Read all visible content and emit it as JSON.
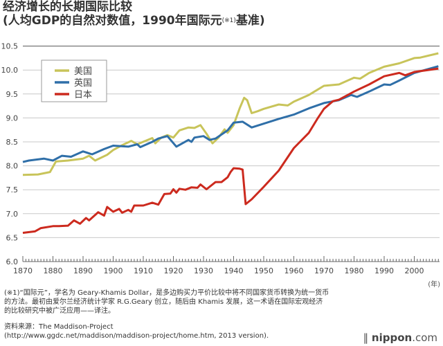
{
  "title": {
    "line1": "经济增长的长期国际比较",
    "line2_pre": "(人均GDP的自然对数值，1990年国际元",
    "line2_sup": "(※1)",
    "line2_post": "基准)"
  },
  "chart_data": {
    "type": "line",
    "title": "经济增长的长期国际比较",
    "xlabel": "(年)",
    "ylabel": "",
    "xlim": [
      1870,
      2008
    ],
    "ylim": [
      6.0,
      10.5
    ],
    "yticks": [
      "6.0",
      "6.5",
      "7.0",
      "7.5",
      "8.0",
      "8.5",
      "9.0",
      "9.5",
      "10.0",
      "10.5"
    ],
    "xticks": [
      "1870",
      "1880",
      "1890",
      "1900",
      "1910",
      "1920",
      "1930",
      "1940",
      "1950",
      "1960",
      "1970",
      "1980",
      "1990",
      "2000"
    ],
    "grid": true,
    "legend": "top-left",
    "series": [
      {
        "name": "美国",
        "color": "#c8c45a",
        "points": [
          [
            1870,
            7.81
          ],
          [
            1875,
            7.82
          ],
          [
            1879,
            7.87
          ],
          [
            1881,
            8.09
          ],
          [
            1885,
            8.11
          ],
          [
            1890,
            8.15
          ],
          [
            1892,
            8.21
          ],
          [
            1894,
            8.11
          ],
          [
            1898,
            8.23
          ],
          [
            1900,
            8.33
          ],
          [
            1903,
            8.43
          ],
          [
            1906,
            8.52
          ],
          [
            1908,
            8.45
          ],
          [
            1913,
            8.58
          ],
          [
            1914,
            8.47
          ],
          [
            1916,
            8.59
          ],
          [
            1918,
            8.64
          ],
          [
            1920,
            8.59
          ],
          [
            1922,
            8.74
          ],
          [
            1925,
            8.8
          ],
          [
            1927,
            8.79
          ],
          [
            1929,
            8.85
          ],
          [
            1931,
            8.67
          ],
          [
            1933,
            8.47
          ],
          [
            1935,
            8.59
          ],
          [
            1937,
            8.76
          ],
          [
            1938,
            8.69
          ],
          [
            1940,
            8.85
          ],
          [
            1942,
            9.2
          ],
          [
            1943.5,
            9.42
          ],
          [
            1944.5,
            9.37
          ],
          [
            1946,
            9.1
          ],
          [
            1948,
            9.14
          ],
          [
            1950,
            9.19
          ],
          [
            1955,
            9.28
          ],
          [
            1958,
            9.26
          ],
          [
            1960,
            9.34
          ],
          [
            1965,
            9.48
          ],
          [
            1970,
            9.67
          ],
          [
            1975,
            9.7
          ],
          [
            1980,
            9.84
          ],
          [
            1982,
            9.82
          ],
          [
            1985,
            9.94
          ],
          [
            1990,
            10.07
          ],
          [
            1995,
            10.14
          ],
          [
            2000,
            10.25
          ],
          [
            2002,
            10.26
          ],
          [
            2008,
            10.35
          ]
        ]
      },
      {
        "name": "英国",
        "color": "#2f6fa8",
        "points": [
          [
            1870,
            8.08
          ],
          [
            1872,
            8.11
          ],
          [
            1877,
            8.15
          ],
          [
            1880,
            8.11
          ],
          [
            1883,
            8.21
          ],
          [
            1886,
            8.19
          ],
          [
            1890,
            8.3
          ],
          [
            1893,
            8.24
          ],
          [
            1897,
            8.35
          ],
          [
            1900,
            8.42
          ],
          [
            1905,
            8.4
          ],
          [
            1908,
            8.45
          ],
          [
            1909,
            8.39
          ],
          [
            1913,
            8.5
          ],
          [
            1915,
            8.57
          ],
          [
            1918,
            8.62
          ],
          [
            1921,
            8.4
          ],
          [
            1925,
            8.54
          ],
          [
            1926,
            8.5
          ],
          [
            1927,
            8.59
          ],
          [
            1930,
            8.62
          ],
          [
            1932,
            8.54
          ],
          [
            1934,
            8.57
          ],
          [
            1938,
            8.74
          ],
          [
            1940,
            8.9
          ],
          [
            1943,
            8.92
          ],
          [
            1946,
            8.8
          ],
          [
            1950,
            8.88
          ],
          [
            1955,
            8.98
          ],
          [
            1960,
            9.07
          ],
          [
            1965,
            9.2
          ],
          [
            1970,
            9.31
          ],
          [
            1975,
            9.37
          ],
          [
            1979,
            9.48
          ],
          [
            1981,
            9.44
          ],
          [
            1985,
            9.55
          ],
          [
            1990,
            9.7
          ],
          [
            1992,
            9.69
          ],
          [
            1995,
            9.78
          ],
          [
            2000,
            9.94
          ],
          [
            2008,
            10.08
          ]
        ]
      },
      {
        "name": "日本",
        "color": "#cc2a1e",
        "points": [
          [
            1870,
            6.6
          ],
          [
            1874,
            6.63
          ],
          [
            1876,
            6.7
          ],
          [
            1880,
            6.74
          ],
          [
            1882,
            6.74
          ],
          [
            1885,
            6.75
          ],
          [
            1887,
            6.86
          ],
          [
            1889,
            6.79
          ],
          [
            1891,
            6.91
          ],
          [
            1892,
            6.86
          ],
          [
            1895,
            7.03
          ],
          [
            1897,
            6.96
          ],
          [
            1898,
            7.14
          ],
          [
            1900,
            7.04
          ],
          [
            1902,
            7.1
          ],
          [
            1903,
            7.02
          ],
          [
            1905,
            7.08
          ],
          [
            1906,
            7.04
          ],
          [
            1907,
            7.17
          ],
          [
            1910,
            7.17
          ],
          [
            1913,
            7.23
          ],
          [
            1915,
            7.19
          ],
          [
            1917,
            7.41
          ],
          [
            1919,
            7.42
          ],
          [
            1920,
            7.51
          ],
          [
            1921,
            7.44
          ],
          [
            1922,
            7.52
          ],
          [
            1924,
            7.5
          ],
          [
            1926,
            7.55
          ],
          [
            1928,
            7.54
          ],
          [
            1929,
            7.61
          ],
          [
            1931,
            7.51
          ],
          [
            1934,
            7.66
          ],
          [
            1936,
            7.66
          ],
          [
            1938,
            7.76
          ],
          [
            1939,
            7.87
          ],
          [
            1940,
            7.95
          ],
          [
            1942,
            7.94
          ],
          [
            1943,
            7.92
          ],
          [
            1944,
            7.2
          ],
          [
            1946,
            7.3
          ],
          [
            1950,
            7.56
          ],
          [
            1955,
            7.9
          ],
          [
            1960,
            8.37
          ],
          [
            1965,
            8.69
          ],
          [
            1968,
            9.0
          ],
          [
            1970,
            9.19
          ],
          [
            1973,
            9.35
          ],
          [
            1975,
            9.38
          ],
          [
            1980,
            9.55
          ],
          [
            1985,
            9.7
          ],
          [
            1990,
            9.87
          ],
          [
            1995,
            9.94
          ],
          [
            1997,
            9.89
          ],
          [
            2000,
            9.96
          ],
          [
            2008,
            10.03
          ]
        ]
      }
    ]
  },
  "footnote": "(※1)“国际元”，学名为 Geary-Khamis Dollar，是多边购买力平价比较中将不同国家货币转换为统一货币的方法。最初由爱尔兰经济统计学家 R.G.Geary 创立，随后由 Khamis 发展，这一术语在国际宏观经济的比较研究中被广泛应用——译注。",
  "source": {
    "line1": "资料来源：The Maddison-Project",
    "line2": "(http://www.ggdc.net/maddison/maddison-project/home.htm, 2013 version)."
  },
  "logo": {
    "brand": "nippon",
    "suffix": ".com"
  }
}
